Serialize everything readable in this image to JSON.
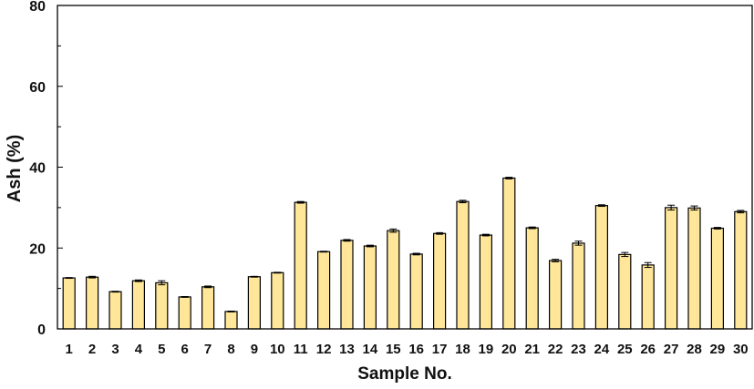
{
  "chart_data": {
    "type": "bar",
    "title": "",
    "xlabel": "Sample No.",
    "ylabel": "Ash (%)",
    "ylim": [
      0,
      80
    ],
    "yticks": [
      0,
      20,
      40,
      60,
      80
    ],
    "categories": [
      "1",
      "2",
      "3",
      "4",
      "5",
      "6",
      "7",
      "8",
      "9",
      "10",
      "11",
      "12",
      "13",
      "14",
      "15",
      "16",
      "17",
      "18",
      "19",
      "20",
      "21",
      "22",
      "23",
      "24",
      "25",
      "26",
      "27",
      "28",
      "29",
      "30"
    ],
    "values": [
      12.6,
      12.8,
      9.2,
      11.9,
      11.4,
      7.9,
      10.4,
      4.3,
      12.9,
      13.9,
      31.3,
      19.1,
      21.9,
      20.5,
      24.3,
      18.5,
      23.6,
      31.5,
      23.2,
      37.3,
      25.0,
      16.9,
      21.2,
      30.5,
      18.4,
      15.8,
      30.0,
      29.9,
      24.9,
      29.0
    ],
    "errors": [
      0.1,
      0.2,
      0.1,
      0.2,
      0.5,
      0.1,
      0.2,
      0.1,
      0.1,
      0.1,
      0.2,
      0.1,
      0.2,
      0.2,
      0.4,
      0.2,
      0.2,
      0.3,
      0.2,
      0.2,
      0.2,
      0.3,
      0.5,
      0.2,
      0.5,
      0.6,
      0.6,
      0.5,
      0.2,
      0.3
    ],
    "bar_color": "#FFE699",
    "grid": false,
    "legend": "none"
  }
}
